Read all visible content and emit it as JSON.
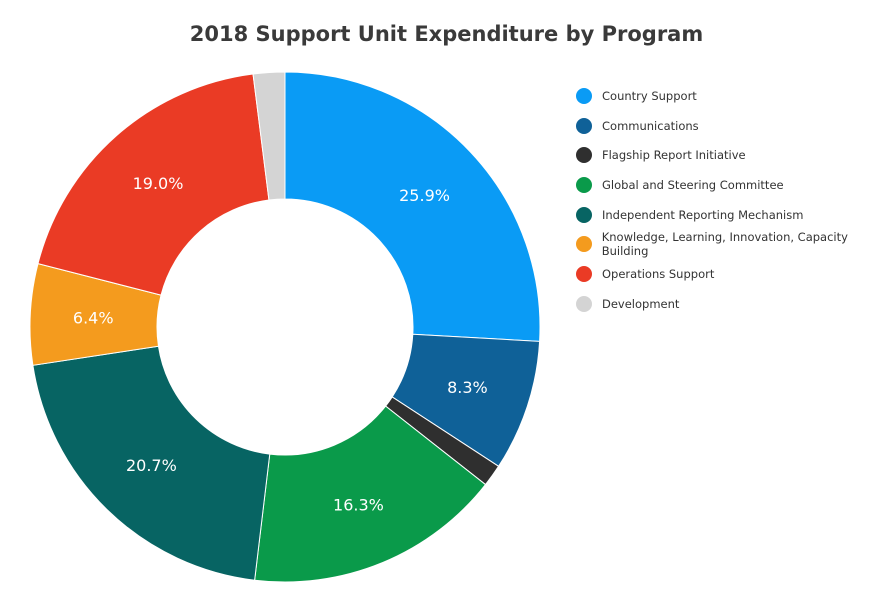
{
  "chart_data": {
    "type": "pie",
    "donut": true,
    "title": "2018 Support Unit Expenditure by Program",
    "legend_position": "right",
    "series": [
      {
        "name": "Country Support",
        "value": 25.9,
        "label": "25.9%",
        "color": "#0A9BF5"
      },
      {
        "name": "Communications",
        "value": 8.3,
        "label": "8.3%",
        "color": "#0F6198"
      },
      {
        "name": "Flagship Report Initiative",
        "value": 1.4,
        "label": "",
        "color": "#2F2F2F"
      },
      {
        "name": "Global and Steering Committee",
        "value": 16.3,
        "label": "16.3%",
        "color": "#0A9A4A"
      },
      {
        "name": "Independent Reporting Mechanism",
        "value": 20.7,
        "label": "20.7%",
        "color": "#076463"
      },
      {
        "name": "Knowledge, Learning, Innovation, Capacity Building",
        "value": 6.4,
        "label": "6.4%",
        "color": "#F49B1E"
      },
      {
        "name": "Operations Support",
        "value": 19.0,
        "label": "19.0%",
        "color": "#EA3B25"
      },
      {
        "name": "Development",
        "value": 2.0,
        "label": "",
        "color": "#D4D4D4"
      }
    ]
  }
}
